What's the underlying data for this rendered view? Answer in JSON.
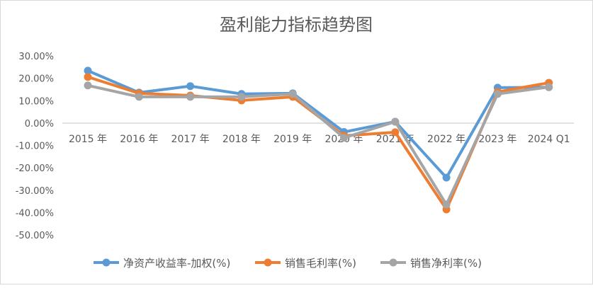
{
  "chart_data": {
    "type": "line",
    "title": "盈利能力指标趋势图",
    "categories": [
      "2015 年",
      "2016 年",
      "2017 年",
      "2018 年",
      "2019 年",
      "2020 年",
      "2021 年",
      "2022 年",
      "2023 年",
      "2024 Q1"
    ],
    "yticks": [
      "30.00%",
      "20.00%",
      "10.00%",
      "0.00%",
      "-10.00%",
      "-20.00%",
      "-30.00%",
      "-40.00%",
      "-50.00%"
    ],
    "ylim": [
      -50,
      30
    ],
    "grid": false,
    "legend_position": "bottom",
    "series": [
      {
        "name": "净资产收益率-加权(%)",
        "color": "#5B9BD5",
        "values": [
          23.4,
          13.6,
          16.5,
          13.0,
          13.3,
          -4.0,
          0.6,
          -24.4,
          15.8,
          16.0
        ]
      },
      {
        "name": "销售毛利率(%)",
        "color": "#ED7D31",
        "values": [
          20.6,
          13.3,
          12.3,
          10.1,
          11.7,
          -5.7,
          -4.1,
          -38.6,
          13.9,
          18.0
        ]
      },
      {
        "name": "销售净利率(%)",
        "color": "#A5A5A5",
        "values": [
          16.8,
          11.7,
          11.7,
          11.7,
          13.0,
          -6.6,
          0.6,
          -36.4,
          13.0,
          16.1
        ]
      }
    ]
  }
}
